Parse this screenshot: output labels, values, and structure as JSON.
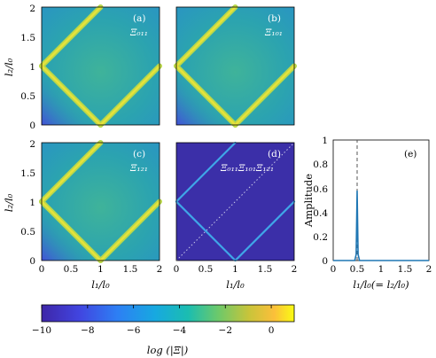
{
  "chart_data": [
    {
      "type": "heatmap",
      "panel": "(a)",
      "label": "Ξ₀₁₁",
      "x_ticks": [
        "0",
        "0.5",
        "1",
        "1.5",
        "2"
      ],
      "y_ticks": [
        "0",
        "0.5",
        "1",
        "1.5",
        "2"
      ],
      "xlim": [
        0,
        2
      ],
      "ylim": [
        0,
        2
      ],
      "ylabel": "l₂/l₀",
      "bright_lines": [
        [
          [
            0,
            1
          ],
          [
            1,
            2
          ]
        ],
        [
          [
            0,
            1
          ],
          [
            1,
            0
          ]
        ],
        [
          [
            1,
            0
          ],
          [
            2,
            1
          ]
        ]
      ]
    },
    {
      "type": "heatmap",
      "panel": "(b)",
      "label": "Ξ₁₀₁",
      "xlim": [
        0,
        2
      ],
      "ylim": [
        0,
        2
      ],
      "bright_lines": [
        [
          [
            0,
            1
          ],
          [
            1,
            2
          ]
        ],
        [
          [
            0,
            1
          ],
          [
            1,
            0
          ]
        ],
        [
          [
            1,
            0
          ],
          [
            2,
            1
          ]
        ]
      ]
    },
    {
      "type": "heatmap",
      "panel": "(c)",
      "label": "Ξ₁₂₁",
      "x_ticks": [
        "0",
        "0.5",
        "1",
        "1.5",
        "2"
      ],
      "y_ticks": [
        "0",
        "0.5",
        "1",
        "1.5",
        "2"
      ],
      "xlim": [
        0,
        2
      ],
      "ylim": [
        0,
        2
      ],
      "xlabel": "l₁/l₀",
      "ylabel": "l₂/l₀",
      "bright_lines": [
        [
          [
            0,
            1
          ],
          [
            1,
            2
          ]
        ],
        [
          [
            0,
            1
          ],
          [
            1,
            0
          ]
        ],
        [
          [
            1,
            0
          ],
          [
            2,
            1
          ]
        ]
      ]
    },
    {
      "type": "heatmap",
      "panel": "(d)",
      "label": "Ξ₀₁₁Ξ₁₀₁Ξ₁₂₁",
      "x_ticks": [
        "0",
        "0.5",
        "1",
        "1.5",
        "2"
      ],
      "xlim": [
        0,
        2
      ],
      "ylim": [
        0,
        2
      ],
      "xlabel": "l₁/l₀",
      "bright_lines": [
        [
          [
            0,
            1
          ],
          [
            1,
            2
          ]
        ],
        [
          [
            0,
            1
          ],
          [
            1,
            0
          ]
        ],
        [
          [
            1,
            0
          ],
          [
            2,
            1
          ]
        ]
      ],
      "dotted_line": [
        [
          0,
          0
        ],
        [
          2,
          2
        ]
      ]
    },
    {
      "type": "line",
      "panel": "(e)",
      "x_ticks": [
        "0",
        "0.5",
        "1",
        "1.5",
        "2"
      ],
      "y_ticks": [
        "0",
        "0.2",
        "0.4",
        "0.6",
        "0.8",
        "1"
      ],
      "xlim": [
        0,
        2
      ],
      "ylim": [
        0,
        1
      ],
      "xlabel": "l₁/l₀(= l₂/l₀)",
      "ylabel": "Amplitude",
      "x": [
        0,
        0.45,
        0.48,
        0.5,
        0.52,
        0.55,
        2
      ],
      "y": [
        0,
        0,
        0.05,
        0.58,
        0.05,
        0,
        0
      ],
      "vline_x": 0.5,
      "line_color": "#1f77b4"
    }
  ],
  "colorbar": {
    "ticks": [
      -10,
      -8,
      -6,
      -4,
      -2,
      0
    ],
    "tick_labels": [
      "−10",
      "−8",
      "−6",
      "−4",
      "−2",
      "0"
    ],
    "range": [
      -10,
      1
    ],
    "label": "log (|Ξ|)"
  },
  "colors": {
    "heat_base": "#2fa6a8",
    "heat_low": "#3e4fcf",
    "heat_lines": "#e8e23a",
    "deep": "#3b2fa8",
    "axis": "#000000"
  }
}
